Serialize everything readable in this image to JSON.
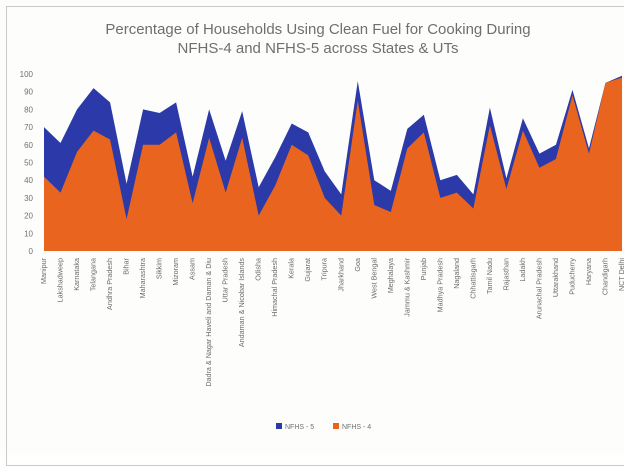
{
  "chart_data": {
    "type": "area",
    "title_lines": [
      "Percentage of Households Using Clean Fuel for Cooking During",
      "NFHS-4 and NFHS-5 across States & UTs"
    ],
    "xlabel": "",
    "ylabel": "",
    "ylim": [
      0,
      100
    ],
    "yticks": [
      0,
      10,
      20,
      30,
      40,
      50,
      60,
      70,
      80,
      90,
      100
    ],
    "grid": false,
    "legend_position": "bottom",
    "categories": [
      "Manipur",
      "Lakshadweep",
      "Karnataka",
      "Telangana",
      "Andhra Pradesh",
      "Bihar",
      "Maharashtra",
      "Sikkim",
      "Mizoram",
      "Assam",
      "Dadra & Nagar Haveli and Daman & Diu",
      "Uttar Pradesh",
      "Andaman & Nicobar Islands",
      "Odisha",
      "Himachal Pradesh",
      "Kerala",
      "Gujarat",
      "Tripura",
      "Jharkhand",
      "Goa",
      "West Bengal",
      "Meghalaya",
      "Jammu & Kashmir",
      "Punjab",
      "Madhya Pradesh",
      "Nagaland",
      "Chhattisgarh",
      "Tamil Nadu",
      "Rajasthan",
      "Ladakh",
      "Arunachal Pradesh",
      "Uttarakhand",
      "Puducherry",
      "Haryana",
      "Chandigarh",
      "NCT Delhi"
    ],
    "series": [
      {
        "name": "NFHS - 5",
        "color": "#2b3aa8",
        "values": [
          70,
          61,
          80,
          92,
          84,
          38,
          80,
          78,
          84,
          42,
          80,
          51,
          79,
          36,
          53,
          72,
          67,
          45,
          32,
          96,
          40,
          34,
          69,
          77,
          40,
          43,
          32,
          81,
          41,
          75,
          55,
          60,
          91,
          58,
          95,
          99
        ]
      },
      {
        "name": "NFHS - 4",
        "color": "#e8641f",
        "values": [
          42,
          33,
          56,
          68,
          63,
          18,
          60,
          60,
          67,
          27,
          64,
          33,
          64,
          20,
          37,
          60,
          54,
          30,
          20,
          85,
          26,
          22,
          58,
          67,
          30,
          33,
          24,
          71,
          35,
          68,
          47,
          52,
          88,
          55,
          95,
          98
        ]
      }
    ]
  }
}
